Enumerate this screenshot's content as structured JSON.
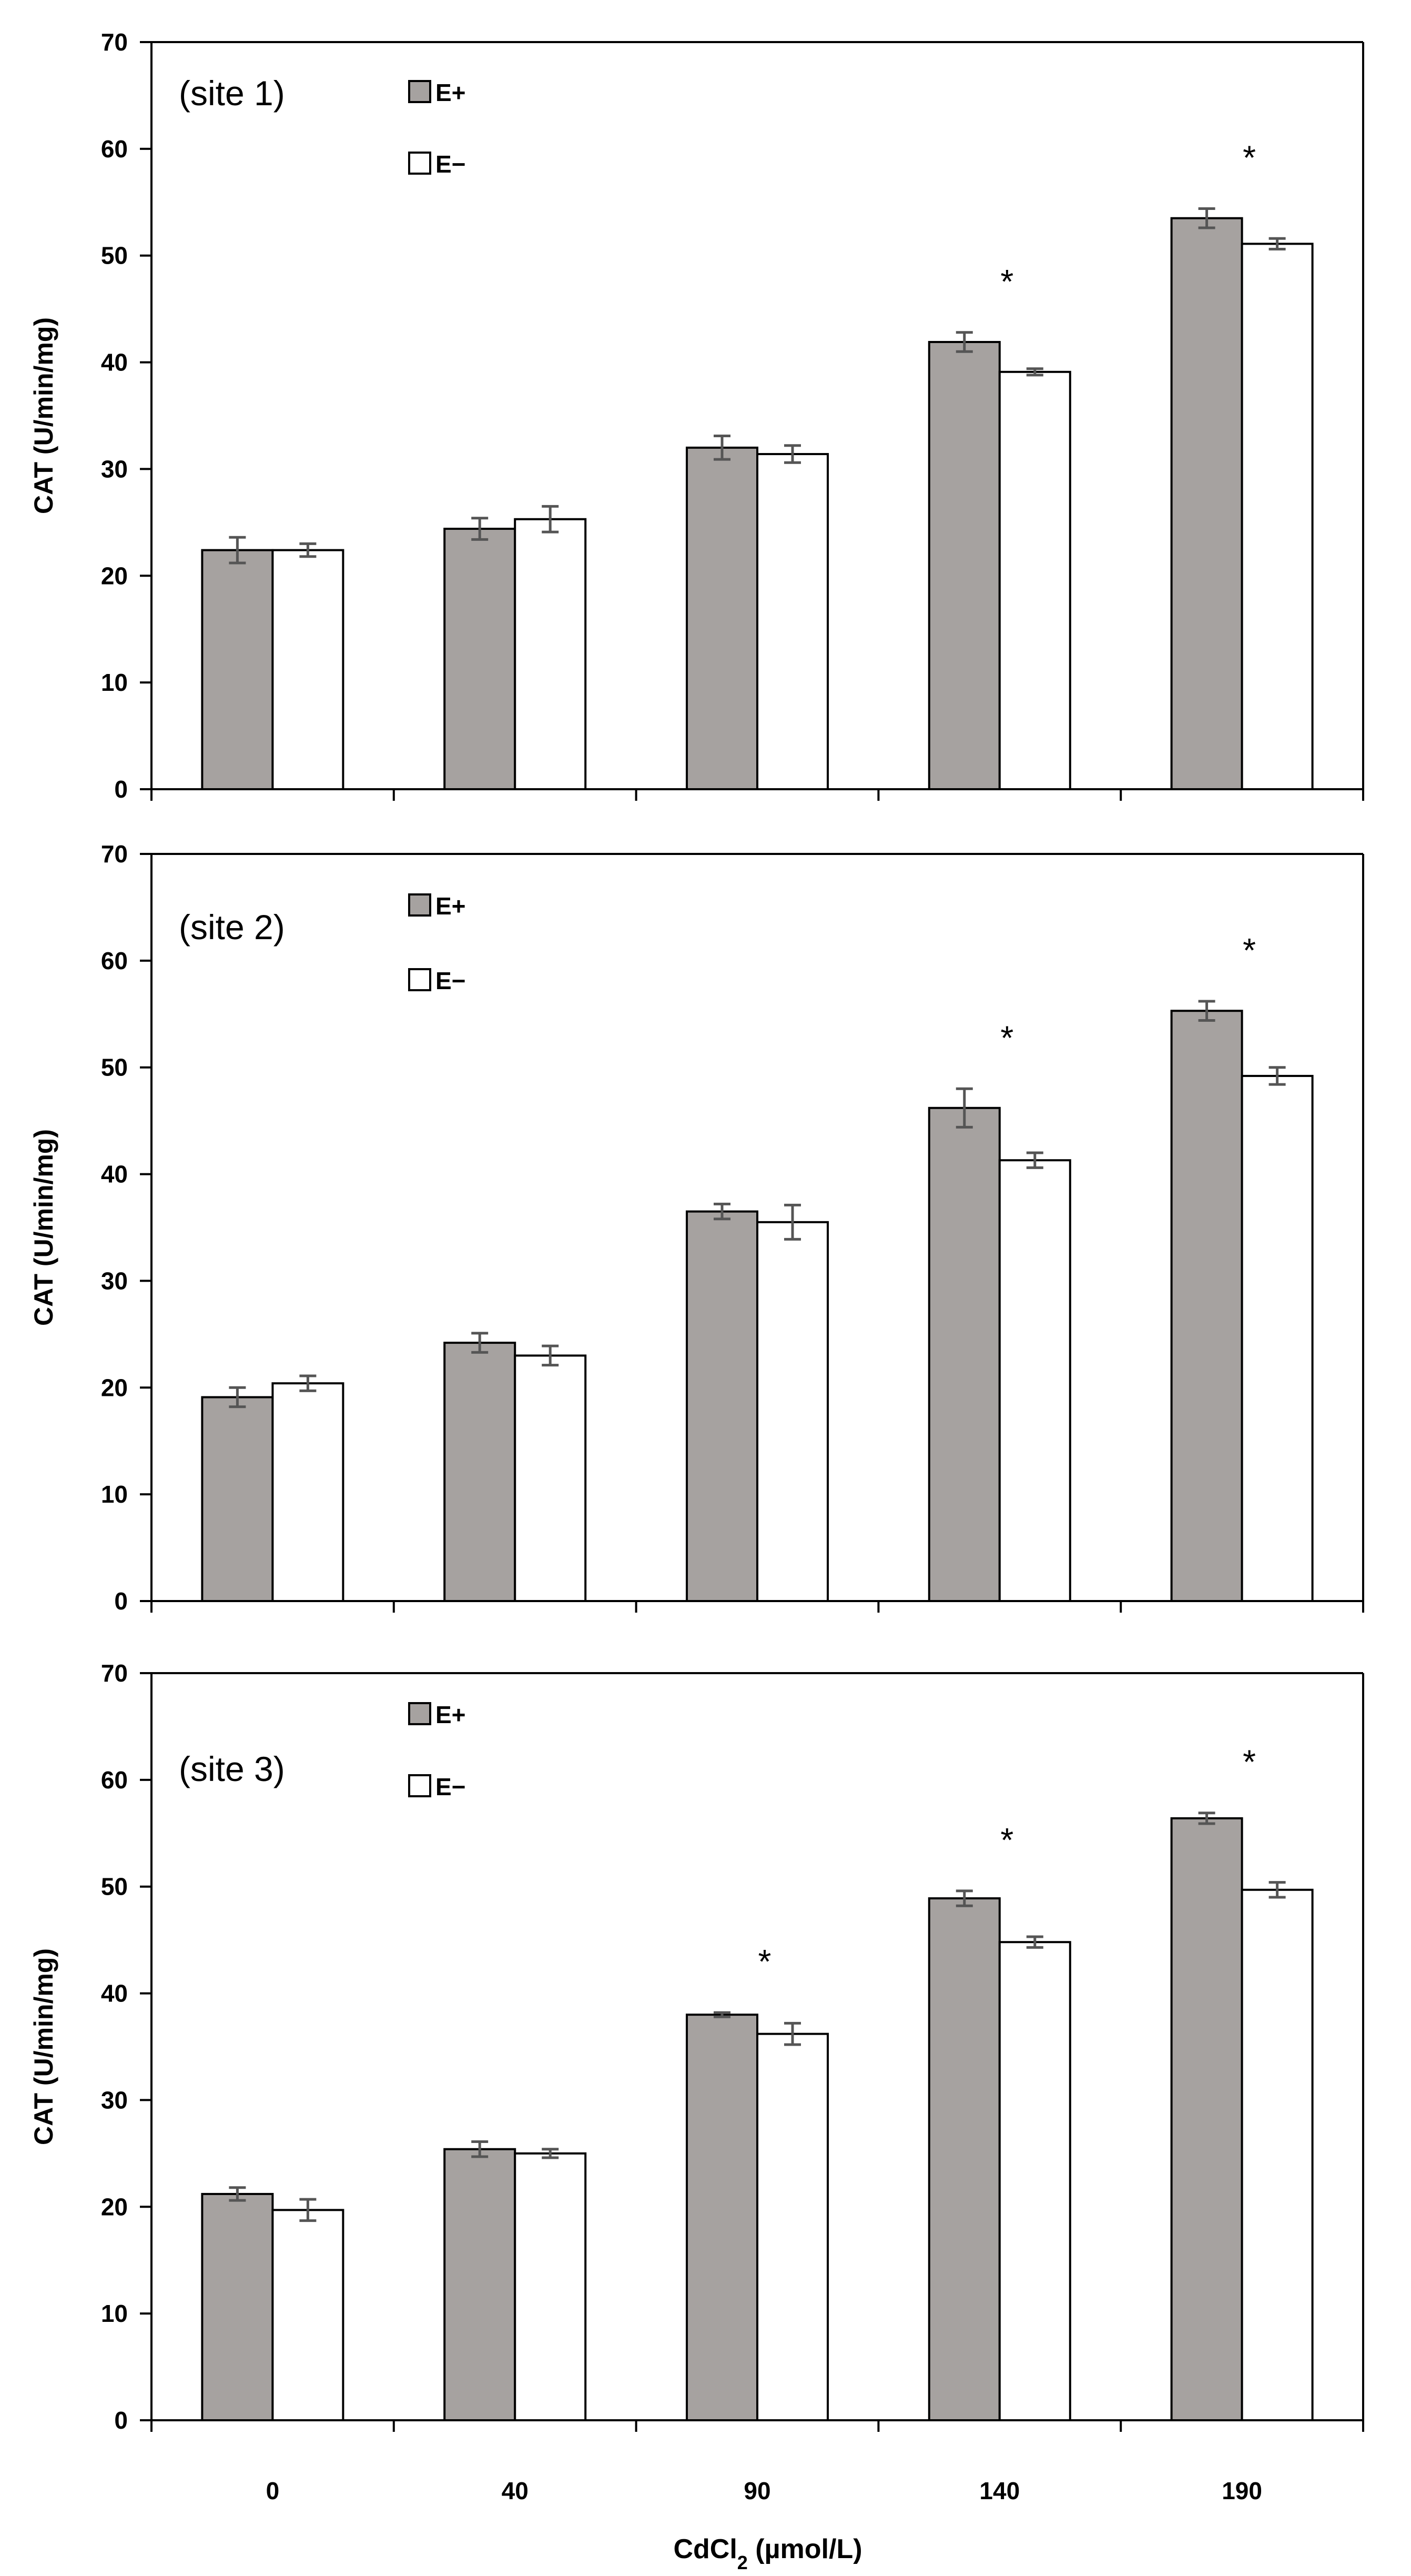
{
  "chart_data": [
    {
      "type": "bar",
      "panel_label": "(site 1)",
      "categories": [
        "0",
        "40",
        "90",
        "140",
        "190"
      ],
      "series": [
        {
          "name": "E+",
          "color": "#a6a2a0",
          "values": [
            22.4,
            24.4,
            32.0,
            41.9,
            53.5
          ],
          "errors": [
            1.2,
            1.0,
            1.1,
            0.9,
            0.9
          ]
        },
        {
          "name": "E−",
          "color": "#ffffff",
          "values": [
            22.4,
            25.3,
            31.4,
            39.1,
            51.1
          ],
          "errors": [
            0.6,
            1.2,
            0.8,
            0.3,
            0.5
          ]
        }
      ],
      "significance": [
        "",
        "",
        "",
        "*",
        "*"
      ],
      "ylabel": "CAT (U/min/mg)",
      "ylim": [
        0,
        70
      ],
      "yticks": [
        "0",
        "10",
        "20",
        "30",
        "40",
        "50",
        "60",
        "70"
      ]
    },
    {
      "type": "bar",
      "panel_label": "(site 2)",
      "categories": [
        "0",
        "40",
        "90",
        "140",
        "190"
      ],
      "series": [
        {
          "name": "E+",
          "color": "#a6a2a0",
          "values": [
            19.1,
            24.2,
            36.5,
            46.2,
            55.3
          ],
          "errors": [
            0.9,
            0.9,
            0.7,
            1.8,
            0.9
          ]
        },
        {
          "name": "E−",
          "color": "#ffffff",
          "values": [
            20.4,
            23.0,
            35.5,
            41.3,
            49.2
          ],
          "errors": [
            0.7,
            0.9,
            1.6,
            0.7,
            0.8
          ]
        }
      ],
      "significance": [
        "",
        "",
        "",
        "*",
        "*"
      ],
      "ylabel": "CAT (U/min/mg)",
      "ylim": [
        0,
        70
      ],
      "yticks": [
        "0",
        "10",
        "20",
        "30",
        "40",
        "50",
        "60",
        "70"
      ]
    },
    {
      "type": "bar",
      "panel_label": "(site 3)",
      "categories": [
        "0",
        "40",
        "90",
        "140",
        "190"
      ],
      "series": [
        {
          "name": "E+",
          "color": "#a6a2a0",
          "values": [
            21.2,
            25.4,
            38.0,
            48.9,
            56.4
          ],
          "errors": [
            0.6,
            0.7,
            0.2,
            0.7,
            0.5
          ]
        },
        {
          "name": "E−",
          "color": "#ffffff",
          "values": [
            19.7,
            25.0,
            36.2,
            44.8,
            49.7
          ],
          "errors": [
            1.0,
            0.4,
            1.0,
            0.5,
            0.7
          ]
        }
      ],
      "significance": [
        "",
        "",
        "*",
        "*",
        "*"
      ],
      "ylabel": "CAT (U/min/mg)",
      "ylim": [
        0,
        70
      ],
      "yticks": [
        "0",
        "10",
        "20",
        "30",
        "40",
        "50",
        "60",
        "70"
      ]
    }
  ],
  "x_axis": {
    "label_main": "CdCl",
    "label_sub": "2",
    "label_unit": " (µmol/L)"
  }
}
